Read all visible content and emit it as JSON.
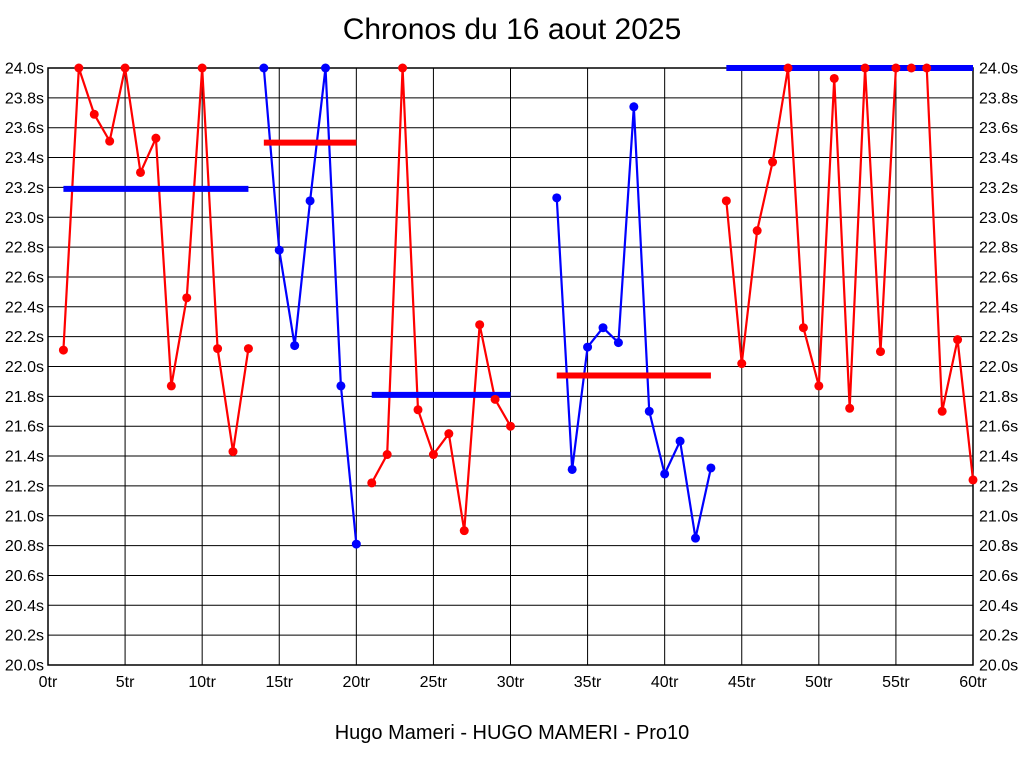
{
  "title": "Chronos du 16 aout 2025",
  "subtitle": "Hugo Mameri - HUGO MAMERI - Pro10",
  "chart_data": {
    "type": "line",
    "title": "Chronos du 16 aout 2025",
    "footer": "Hugo Mameri - HUGO MAMERI - Pro10",
    "x_unit": "tr",
    "y_unit": "s",
    "xlim": [
      0,
      60
    ],
    "ylim": [
      20.0,
      24.0
    ],
    "x_tick_step": 5,
    "y_tick_step": 0.2,
    "x_tick_labels": [
      "0tr",
      "5tr",
      "10tr",
      "15tr",
      "20tr",
      "25tr",
      "30tr",
      "35tr",
      "40tr",
      "45tr",
      "50tr",
      "55tr",
      "60tr"
    ],
    "y_tick_labels": [
      "24.0s",
      "23.8s",
      "23.6s",
      "23.4s",
      "23.2s",
      "23.0s",
      "22.8s",
      "22.6s",
      "22.4s",
      "22.2s",
      "22.0s",
      "21.8s",
      "21.6s",
      "21.4s",
      "21.2s",
      "21.0s",
      "20.8s",
      "20.6s",
      "20.4s",
      "20.2s",
      "20.0s"
    ],
    "grid": true,
    "legend": "none",
    "series": [
      {
        "name": "serie-1-tirs-1-13",
        "color": "#ff0000",
        "points": [
          [
            1,
            22.11
          ],
          [
            2,
            24.0
          ],
          [
            3,
            23.69
          ],
          [
            4,
            23.51
          ],
          [
            5,
            24.0
          ],
          [
            6,
            23.3
          ],
          [
            7,
            23.53
          ],
          [
            8,
            21.87
          ],
          [
            9,
            22.46
          ],
          [
            10,
            24.0
          ],
          [
            11,
            22.12
          ],
          [
            12,
            21.43
          ],
          [
            13,
            22.12
          ]
        ]
      },
      {
        "name": "serie-2-tirs-14-20",
        "color": "#0000ff",
        "points": [
          [
            14,
            24.0
          ],
          [
            15,
            22.78
          ],
          [
            16,
            22.14
          ],
          [
            17,
            23.11
          ],
          [
            18,
            24.0
          ],
          [
            19,
            21.87
          ],
          [
            20,
            20.81
          ]
        ]
      },
      {
        "name": "serie-3-tirs-21-30",
        "color": "#ff0000",
        "points": [
          [
            21,
            21.22
          ],
          [
            22,
            21.41
          ],
          [
            23,
            24.0
          ],
          [
            24,
            21.71
          ],
          [
            25,
            21.41
          ],
          [
            26,
            21.55
          ],
          [
            27,
            20.9
          ],
          [
            28,
            22.28
          ],
          [
            29,
            21.78
          ],
          [
            30,
            21.6
          ]
        ]
      },
      {
        "name": "serie-4-tirs-33-43",
        "color": "#0000ff",
        "points": [
          [
            33,
            23.13
          ],
          [
            34,
            21.31
          ],
          [
            35,
            22.13
          ],
          [
            36,
            22.26
          ],
          [
            37,
            22.16
          ],
          [
            38,
            23.74
          ],
          [
            39,
            21.7
          ],
          [
            40,
            21.28
          ],
          [
            41,
            21.5
          ],
          [
            42,
            20.85
          ],
          [
            43,
            21.32
          ]
        ]
      },
      {
        "name": "serie-5-tirs-44-60",
        "color": "#ff0000",
        "points": [
          [
            44,
            23.11
          ],
          [
            45,
            22.02
          ],
          [
            46,
            22.91
          ],
          [
            47,
            23.37
          ],
          [
            48,
            24.0
          ],
          [
            49,
            22.26
          ],
          [
            50,
            21.87
          ],
          [
            51,
            23.93
          ],
          [
            52,
            21.72
          ],
          [
            53,
            24.0
          ],
          [
            54,
            22.1
          ],
          [
            55,
            24.0
          ],
          [
            56,
            24.0
          ],
          [
            57,
            24.0
          ],
          [
            58,
            21.7
          ],
          [
            59,
            22.18
          ],
          [
            60,
            21.24
          ]
        ]
      }
    ],
    "average_bars": [
      {
        "name": "moyenne-serie-1",
        "color": "#0000ff",
        "x_start": 1,
        "x_end": 13,
        "value": 23.19
      },
      {
        "name": "moyenne-serie-2",
        "color": "#ff0000",
        "x_start": 14,
        "x_end": 20,
        "value": 23.5
      },
      {
        "name": "moyenne-serie-3",
        "color": "#0000ff",
        "x_start": 21,
        "x_end": 30,
        "value": 21.81
      },
      {
        "name": "moyenne-serie-4",
        "color": "#ff0000",
        "x_start": 33,
        "x_end": 43,
        "value": 21.94
      },
      {
        "name": "moyenne-serie-5",
        "color": "#0000ff",
        "x_start": 44,
        "x_end": 60,
        "value": 24.0
      }
    ],
    "colors": {
      "series_red": "#ff0000",
      "series_blue": "#0000ff",
      "axis": "#000000",
      "grid": "#000000",
      "background": "#ffffff"
    }
  }
}
